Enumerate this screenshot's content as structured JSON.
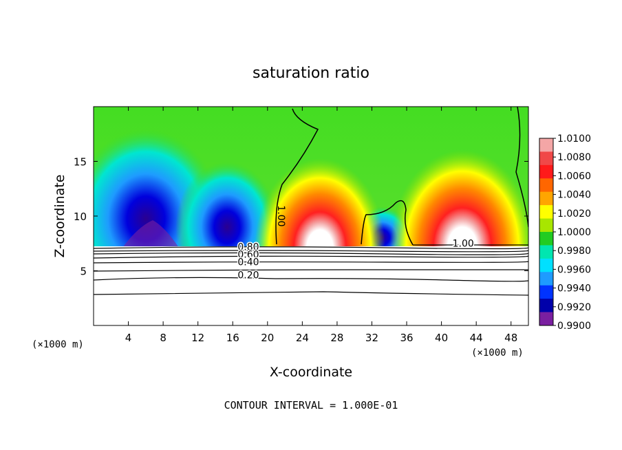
{
  "chart_data": {
    "type": "heatmap",
    "title": "saturation ratio",
    "xlabel": "X-coordinate",
    "ylabel": "Z-coordinate",
    "x_unit": "(×1000 m)",
    "xlim": [
      0,
      50
    ],
    "ylim": [
      0,
      20
    ],
    "x_ticks": [
      4,
      8,
      12,
      16,
      20,
      24,
      28,
      32,
      36,
      40,
      44,
      48
    ],
    "y_ticks": [
      5,
      10,
      15
    ],
    "colorbar": {
      "levels": [
        "1.0100",
        "1.0080",
        "1.0060",
        "1.0040",
        "1.0020",
        "1.0000",
        "0.9980",
        "0.9960",
        "0.9940",
        "0.9920",
        "0.9900"
      ],
      "colors": [
        "#f4a6a6",
        "#f04848",
        "#ff1a1a",
        "#ff6600",
        "#ffa500",
        "#ffff00",
        "#a8e600",
        "#22cc22",
        "#00e6b0",
        "#00e0ff",
        "#1e9bff",
        "#0033ff",
        "#0000aa",
        "#7a1fa0"
      ]
    },
    "contour_labels": [
      {
        "text": "1.00",
        "x": 21.2,
        "z": 10.0
      },
      {
        "text": "1.00",
        "x": 42.5,
        "z": 7.2
      },
      {
        "text": "0.80",
        "x": 17.8,
        "z": 6.9
      },
      {
        "text": "0.60",
        "x": 17.8,
        "z": 6.2
      },
      {
        "text": "0.40",
        "x": 17.8,
        "z": 5.5
      },
      {
        "text": "0.20",
        "x": 17.8,
        "z": 4.3
      }
    ],
    "contour_interval": "CONTOUR INTERVAL = 1.000E-01"
  }
}
